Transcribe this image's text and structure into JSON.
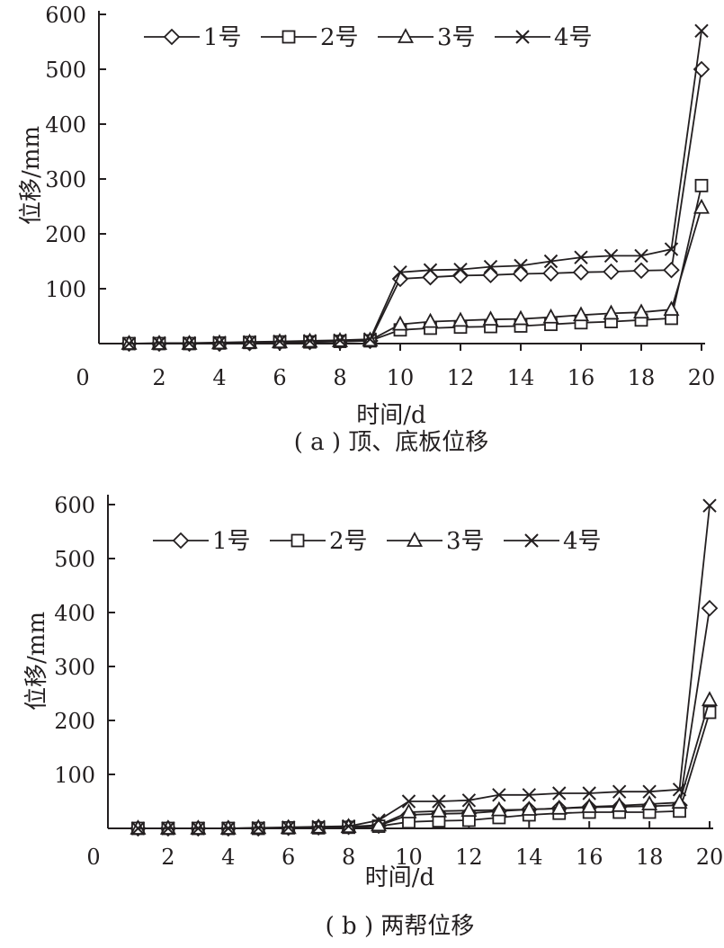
{
  "chart_data": [
    {
      "type": "line",
      "caption": "( a ) 顶、底板位移",
      "xlabel": "时间/d",
      "ylabel": "位移/mm",
      "xlim": [
        0,
        20
      ],
      "ylim": [
        0,
        600
      ],
      "x_ticks": [
        "0",
        "2",
        "4",
        "6",
        "8",
        "10",
        "12",
        "14",
        "16",
        "18",
        "20"
      ],
      "y_ticks": [
        "100",
        "200",
        "300",
        "400",
        "500",
        "600"
      ],
      "legend_position": "top",
      "x": [
        1,
        2,
        3,
        4,
        5,
        6,
        7,
        8,
        9,
        10,
        11,
        12,
        13,
        14,
        15,
        16,
        17,
        18,
        19,
        20
      ],
      "series": [
        {
          "name": "1号",
          "marker": "diamond",
          "values": [
            0,
            0,
            0,
            0,
            1,
            2,
            3,
            4,
            5,
            118,
            121,
            124,
            125,
            127,
            128,
            130,
            131,
            133,
            134,
            500
          ]
        },
        {
          "name": "2号",
          "marker": "square",
          "values": [
            0,
            0,
            0,
            1,
            2,
            3,
            3,
            4,
            5,
            25,
            28,
            30,
            31,
            32,
            35,
            38,
            40,
            43,
            46,
            288
          ]
        },
        {
          "name": "3号",
          "marker": "triangle",
          "values": [
            0,
            0,
            0,
            1,
            2,
            3,
            4,
            5,
            6,
            35,
            40,
            42,
            44,
            45,
            48,
            52,
            55,
            57,
            62,
            248
          ]
        },
        {
          "name": "4号",
          "marker": "cross",
          "values": [
            0,
            1,
            1,
            2,
            3,
            4,
            5,
            6,
            8,
            130,
            134,
            135,
            140,
            142,
            150,
            157,
            160,
            160,
            172,
            570
          ]
        }
      ]
    },
    {
      "type": "line",
      "caption": "( b ) 两帮位移",
      "xlabel": "时间/d",
      "ylabel": "位移/mm",
      "xlim": [
        0,
        20
      ],
      "ylim": [
        0,
        600
      ],
      "x_ticks": [
        "0",
        "2",
        "4",
        "6",
        "8",
        "10",
        "12",
        "14",
        "16",
        "18",
        "20"
      ],
      "y_ticks": [
        "100",
        "200",
        "300",
        "400",
        "500",
        "600"
      ],
      "legend_position": "top",
      "x": [
        1,
        2,
        3,
        4,
        5,
        6,
        7,
        8,
        9,
        10,
        11,
        12,
        13,
        14,
        15,
        16,
        17,
        18,
        19,
        20
      ],
      "series": [
        {
          "name": "1号",
          "marker": "diamond",
          "values": [
            0,
            0,
            0,
            0,
            0,
            1,
            2,
            3,
            5,
            25,
            27,
            28,
            32,
            35,
            37,
            39,
            40,
            41,
            43,
            408
          ]
        },
        {
          "name": "2号",
          "marker": "square",
          "values": [
            0,
            0,
            0,
            0,
            0,
            1,
            1,
            2,
            4,
            12,
            14,
            15,
            20,
            25,
            28,
            30,
            30,
            30,
            32,
            215
          ]
        },
        {
          "name": "3号",
          "marker": "triangle",
          "values": [
            0,
            0,
            0,
            0,
            1,
            1,
            2,
            3,
            6,
            30,
            32,
            33,
            34,
            35,
            37,
            40,
            42,
            45,
            48,
            238
          ]
        },
        {
          "name": "4号",
          "marker": "cross",
          "values": [
            0,
            0,
            0,
            0,
            1,
            2,
            3,
            4,
            15,
            50,
            50,
            52,
            62,
            62,
            65,
            65,
            68,
            68,
            72,
            598
          ]
        }
      ]
    }
  ]
}
